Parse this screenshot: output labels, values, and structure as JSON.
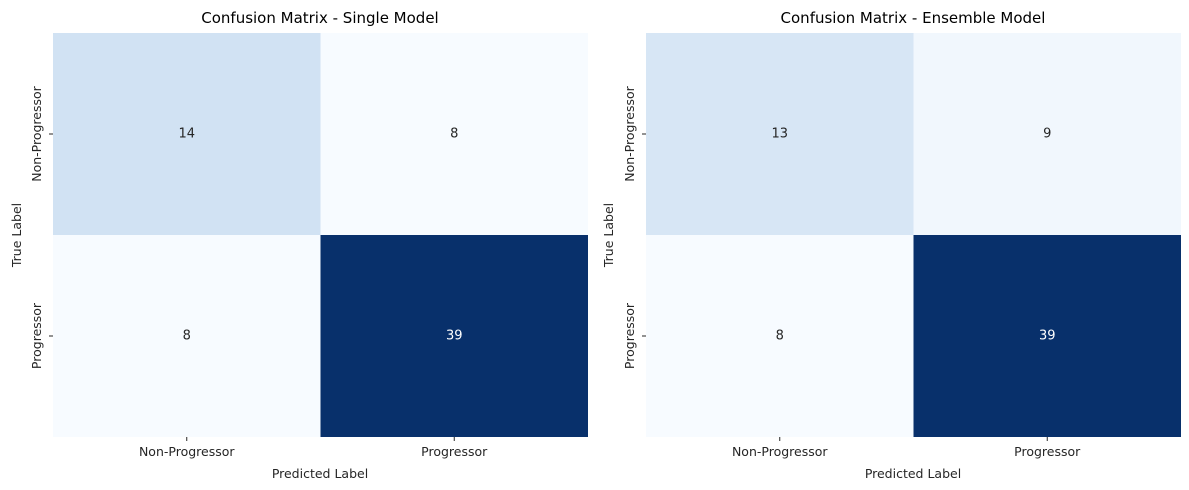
{
  "chart_data": [
    {
      "type": "heatmap",
      "title": "Confusion Matrix - Single Model",
      "xlabel": "Predicted Label",
      "ylabel": "True Label",
      "x_categories": [
        "Non-Progressor",
        "Progressor"
      ],
      "y_categories": [
        "Non-Progressor",
        "Progressor"
      ],
      "values": [
        [
          14,
          8
        ],
        [
          8,
          39
        ]
      ],
      "colormap": "Blues",
      "colorbar": false,
      "grid": false
    },
    {
      "type": "heatmap",
      "title": "Confusion Matrix - Ensemble Model",
      "xlabel": "Predicted Label",
      "ylabel": "True Label",
      "x_categories": [
        "Non-Progressor",
        "Progressor"
      ],
      "y_categories": [
        "Non-Progressor",
        "Progressor"
      ],
      "values": [
        [
          13,
          9
        ],
        [
          8,
          39
        ]
      ],
      "colormap": "Blues",
      "colorbar": false,
      "grid": false
    }
  ]
}
